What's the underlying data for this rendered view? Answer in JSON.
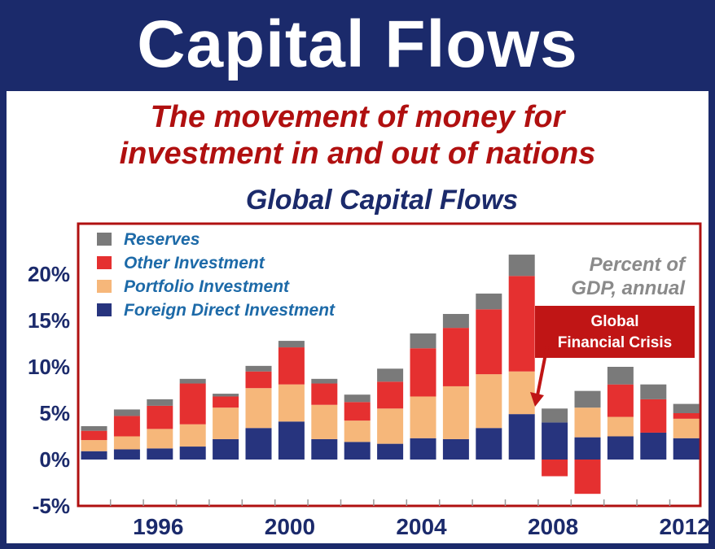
{
  "header": {
    "title": "Capital Flows"
  },
  "subtitle": {
    "line1": "The movement of money for",
    "line2": "investment in and out of nations"
  },
  "colors": {
    "banner": "#1b2a6b",
    "reserves": "#7a7a7a",
    "other_investment": "#e53030",
    "portfolio_investment": "#f6b77a",
    "fdi": "#27347e",
    "plot_border": "#b01010"
  },
  "chart_data": {
    "type": "bar",
    "stacked": true,
    "title": "Global Capital Flows",
    "note": [
      "Percent of",
      "GDP, annual"
    ],
    "xlabel": "",
    "ylabel": "",
    "ylim": [
      -5,
      25
    ],
    "yticks": [
      "20%",
      "15%",
      "10%",
      "5%",
      "0%",
      "-5%"
    ],
    "xtick_labels": [
      "1996",
      "2000",
      "2004",
      "2008",
      "2012"
    ],
    "years": [
      1994,
      1995,
      1996,
      1997,
      1998,
      1999,
      2000,
      2001,
      2002,
      2003,
      2004,
      2005,
      2006,
      2007,
      2008,
      2009,
      2010,
      2011,
      2012
    ],
    "legend_position": "top-left",
    "series": [
      {
        "name": "Foreign Direct Investment",
        "key": "fdi",
        "values": [
          0.9,
          1.1,
          1.2,
          1.4,
          2.2,
          3.4,
          4.1,
          2.2,
          1.9,
          1.7,
          2.3,
          2.2,
          3.4,
          4.9,
          4.0,
          2.4,
          2.5,
          2.9,
          2.3
        ]
      },
      {
        "name": "Portfolio Investment",
        "key": "portfolio_investment",
        "values": [
          1.2,
          1.4,
          2.1,
          2.4,
          3.4,
          4.3,
          4.0,
          3.7,
          2.3,
          3.8,
          4.5,
          5.7,
          5.8,
          4.6,
          0,
          3.2,
          2.1,
          0,
          2.1
        ]
      },
      {
        "name": "Other Investment",
        "key": "other_investment",
        "values": [
          1.0,
          2.2,
          2.5,
          4.4,
          1.2,
          1.8,
          4.0,
          2.3,
          2.0,
          2.9,
          5.2,
          6.3,
          7.0,
          10.3,
          -1.8,
          -3.7,
          3.5,
          3.6,
          0.6
        ]
      },
      {
        "name": "Reserves",
        "key": "reserves",
        "values": [
          0.5,
          0.7,
          0.7,
          0.5,
          0.3,
          0.6,
          0.7,
          0.5,
          0.8,
          1.4,
          1.6,
          1.5,
          1.7,
          2.3,
          1.5,
          1.8,
          1.9,
          1.6,
          1.0
        ]
      }
    ],
    "annotation": {
      "lines": [
        "Global",
        "Financial Crisis"
      ],
      "points_to": 2008
    }
  }
}
